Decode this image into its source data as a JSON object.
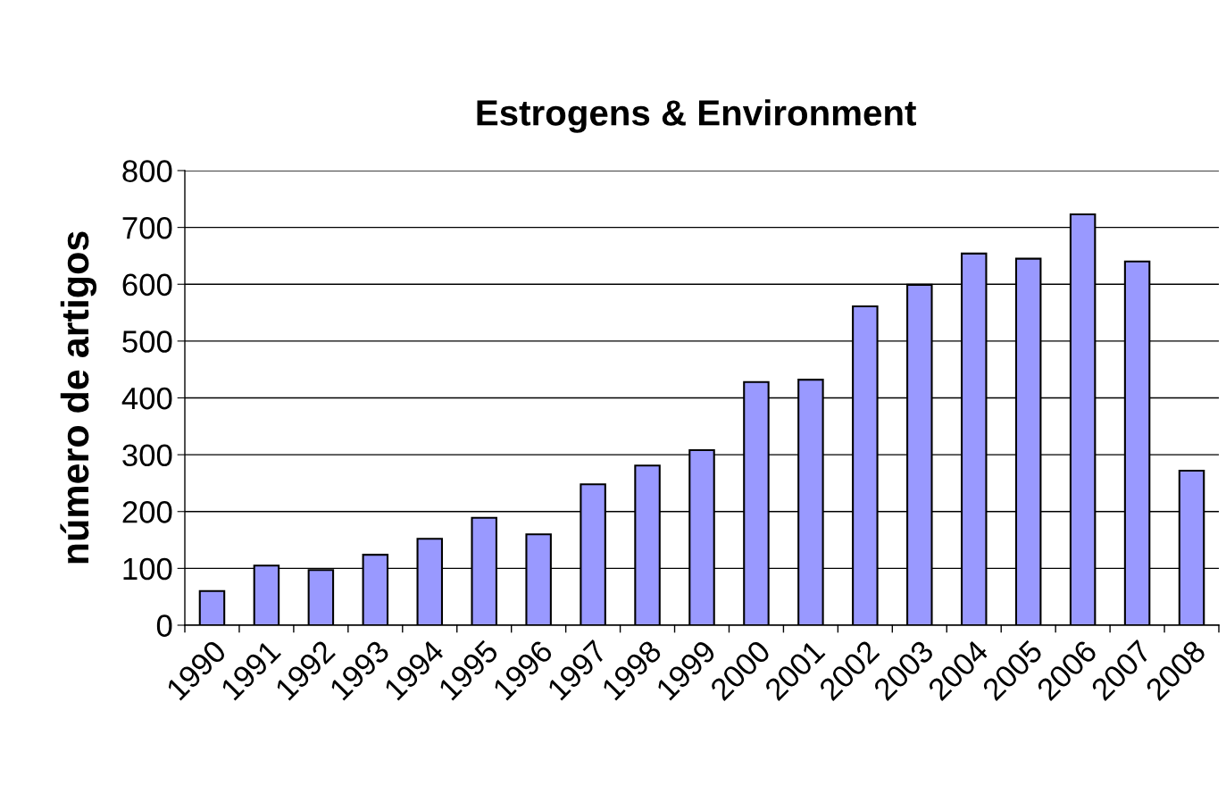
{
  "chart_data": {
    "type": "bar",
    "title": "Estrogens & Environment",
    "ylabel": "número de artigos",
    "categories": [
      "1990",
      "1991",
      "1992",
      "1993",
      "1994",
      "1995",
      "1996",
      "1997",
      "1998",
      "1999",
      "2000",
      "2001",
      "2002",
      "2003",
      "2004",
      "2005",
      "2006",
      "2007",
      "2008"
    ],
    "values": [
      60,
      105,
      97,
      124,
      152,
      189,
      160,
      248,
      281,
      308,
      428,
      432,
      561,
      599,
      654,
      645,
      723,
      640,
      272
    ],
    "color": "#9999ff",
    "ylim": [
      0,
      800
    ],
    "yticks": [
      0,
      100,
      200,
      300,
      400,
      500,
      600,
      700,
      800
    ],
    "grid": "y",
    "legend": false
  }
}
